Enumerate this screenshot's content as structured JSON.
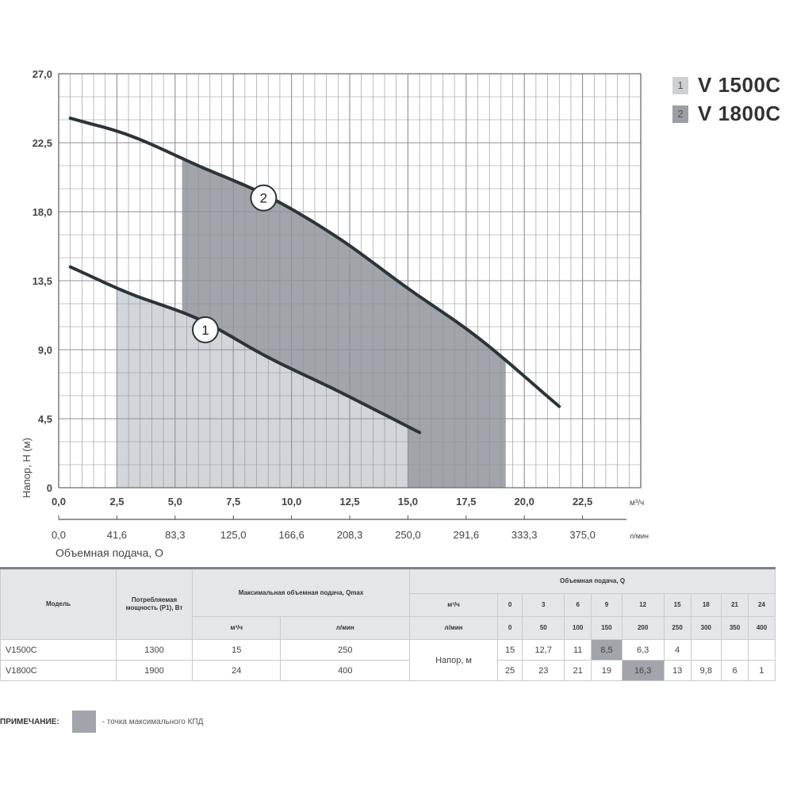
{
  "chart_data": {
    "type": "line",
    "ylabel": "Напор, H (м)",
    "xlabel": "Объемная подача, О",
    "x_unit": "м³/ч",
    "x2_unit": "л/мин",
    "xlim": [
      0,
      25
    ],
    "ylim": [
      0,
      27
    ],
    "x_ticks": [
      "0,0",
      "2,5",
      "5,0",
      "7,5",
      "10,0",
      "12,5",
      "15,0",
      "17,5",
      "20,0",
      "22,5"
    ],
    "x2_ticks": [
      "0,0",
      "41,6",
      "83,3",
      "125,0",
      "166,6",
      "208,3",
      "250,0",
      "291,6",
      "333,3",
      "375,0"
    ],
    "y_ticks": [
      "0",
      "4,5",
      "9,0",
      "13,5",
      "18,0",
      "22,5",
      "27,0"
    ],
    "grid": true,
    "series": [
      {
        "name": "1",
        "x": [
          0.5,
          3,
          6,
          9,
          12,
          15.5
        ],
        "y": [
          14.4,
          12.7,
          11,
          8.5,
          6.3,
          3.6
        ]
      },
      {
        "name": "2",
        "x": [
          0.5,
          3,
          6,
          9,
          12,
          15,
          18,
          21.5
        ],
        "y": [
          24.1,
          23,
          21,
          19,
          16.3,
          13,
          9.8,
          5.3
        ]
      }
    ],
    "shaded_regions": [
      {
        "series": "1",
        "x_from": 2.5,
        "x_to": 15
      },
      {
        "series": "2",
        "x_from": 5.3,
        "x_to": 19.2
      }
    ],
    "curve_markers": [
      {
        "label": "1",
        "x": 6.3,
        "y": 10.3
      },
      {
        "label": "2",
        "x": 8.8,
        "y": 18.9
      }
    ],
    "legend_position": "top-right"
  },
  "colors": {
    "grid": "#8e9196",
    "curve": "#2a3439",
    "region_light": "#d2d5d9",
    "region_dark": "#a1a4aa"
  },
  "legend": [
    {
      "num": "1",
      "name": "V 1500C"
    },
    {
      "num": "2",
      "name": "V 1800C"
    }
  ],
  "table": {
    "h_model": "Модель",
    "h_power": "Потребляемая мощность (Р1), Вт",
    "h_qmax": "Максимальная объемная подача, Qmax",
    "h_flow": "Объемная подача, Q",
    "unit_m3": "м³/ч",
    "unit_lmin": "л/мин",
    "q_m3": [
      "0",
      "3",
      "6",
      "9",
      "12",
      "15",
      "18",
      "21",
      "24"
    ],
    "q_lmin": [
      "0",
      "50",
      "100",
      "150",
      "200",
      "250",
      "300",
      "350",
      "400"
    ],
    "head_label": "Напор, м",
    "rows": [
      {
        "model": "V1500C",
        "power": "1300",
        "qmax_m3": "15",
        "qmax_lmin": "250",
        "heads": [
          "15",
          "12,7",
          "11",
          "8,5",
          "6,3",
          "4",
          "",
          "",
          ""
        ]
      },
      {
        "model": "V1800C",
        "power": "1900",
        "qmax_m3": "24",
        "qmax_lmin": "400",
        "heads": [
          "25",
          "23",
          "21",
          "19",
          "16,3",
          "13",
          "9,8",
          "6",
          "1"
        ]
      }
    ]
  },
  "note": {
    "label": "ПРИМЕЧАНИЕ:",
    "text": "- точка максимального КПД"
  }
}
